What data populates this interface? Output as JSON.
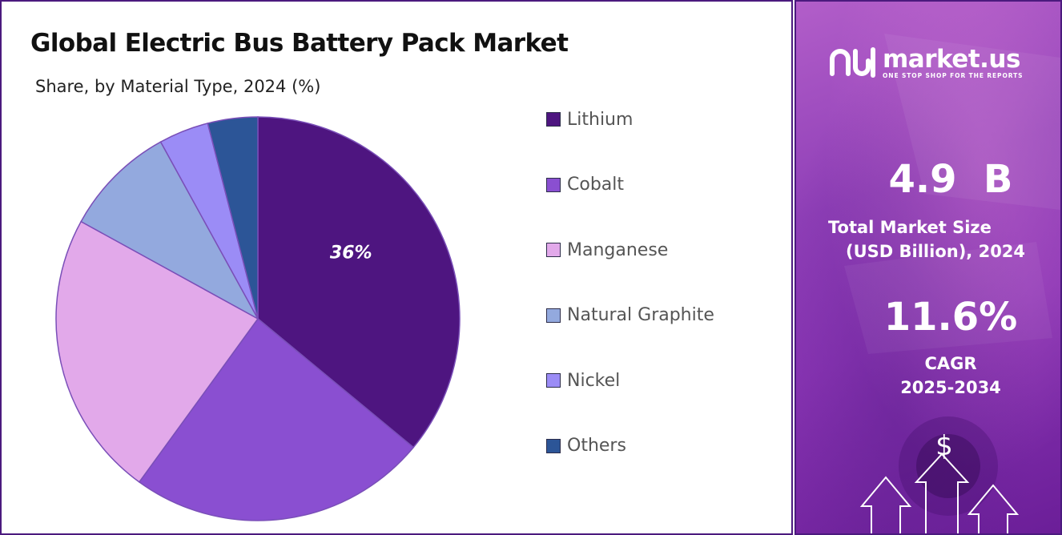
{
  "left_panel": {
    "title": "Global Electric Bus Battery Pack Market",
    "subtitle": "Share, by Material Type, 2024 (%)"
  },
  "chart_data": {
    "type": "pie",
    "title": "Global Electric Bus Battery Pack Market",
    "subtitle": "Share, by Material Type, 2024 (%)",
    "slices": [
      {
        "label": "Lithium",
        "value": 36,
        "color": "#4e1580",
        "data_label": "36%"
      },
      {
        "label": "Cobalt",
        "value": 24,
        "color": "#8a4fd1"
      },
      {
        "label": "Manganese",
        "value": 23,
        "color": "#e2a9ea"
      },
      {
        "label": "Natural Graphite",
        "value": 9,
        "color": "#93a9de"
      },
      {
        "label": "Nickel",
        "value": 4,
        "color": "#9b8cf6"
      },
      {
        "label": "Others",
        "value": 4,
        "color": "#2c5597"
      }
    ],
    "legend_position": "right",
    "slice_border_color": "#7a4fb8"
  },
  "right_panel": {
    "logo_name": "market.us",
    "logo_tagline": "ONE STOP SHOP FOR THE REPORTS",
    "market_size_value": "4.9  B",
    "market_size_label_line1": "Total Market Size",
    "market_size_label_line2": "(USD Billion), 2024",
    "cagr_value": "11.6%",
    "cagr_label_line1": "CAGR",
    "cagr_label_line2": "2025-2034",
    "dollar_symbol": "$",
    "icons": [
      "market-us-logo-icon",
      "dollar-icon",
      "up-arrow-icon"
    ]
  }
}
